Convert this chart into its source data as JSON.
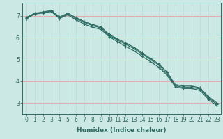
{
  "xlabel": "Humidex (Indice chaleur)",
  "ylabel": "",
  "bg_color": "#cce8e4",
  "line_color": "#2e6b63",
  "grid_color_major": "#e8a0a0",
  "grid_color_minor": "#b0d8d4",
  "x_values": [
    0,
    1,
    2,
    3,
    4,
    5,
    6,
    7,
    8,
    9,
    10,
    11,
    12,
    13,
    14,
    15,
    16,
    17,
    18,
    19,
    20,
    21,
    22,
    23
  ],
  "line1": [
    6.9,
    7.1,
    7.15,
    7.22,
    6.9,
    7.1,
    6.88,
    6.7,
    6.55,
    6.45,
    6.1,
    5.9,
    5.7,
    5.5,
    5.25,
    5.0,
    4.75,
    4.35,
    3.8,
    3.72,
    3.72,
    3.65,
    3.25,
    2.95
  ],
  "line2": [
    6.88,
    7.08,
    7.13,
    7.2,
    6.88,
    7.05,
    6.82,
    6.62,
    6.48,
    6.38,
    6.05,
    5.82,
    5.6,
    5.4,
    5.15,
    4.9,
    4.65,
    4.28,
    3.75,
    3.67,
    3.67,
    3.58,
    3.18,
    2.88
  ],
  "line3": [
    6.93,
    7.12,
    7.18,
    7.25,
    6.95,
    7.12,
    6.92,
    6.74,
    6.6,
    6.5,
    6.15,
    5.95,
    5.76,
    5.56,
    5.3,
    5.05,
    4.8,
    4.42,
    3.85,
    3.78,
    3.78,
    3.7,
    3.3,
    3.02
  ],
  "ylim": [
    2.5,
    7.6
  ],
  "xlim": [
    -0.5,
    23.5
  ],
  "yticks": [
    3,
    4,
    5,
    6,
    7
  ],
  "xticks": [
    0,
    1,
    2,
    3,
    4,
    5,
    6,
    7,
    8,
    9,
    10,
    11,
    12,
    13,
    14,
    15,
    16,
    17,
    18,
    19,
    20,
    21,
    22,
    23
  ],
  "marker": "+",
  "markersize": 3,
  "linewidth": 0.9,
  "tick_fontsize": 5.5,
  "xlabel_fontsize": 6.5
}
